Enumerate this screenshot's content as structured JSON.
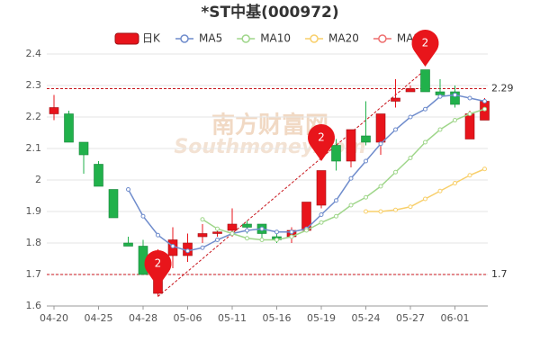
{
  "chart_data": {
    "type": "candlestick",
    "title": "*ST中基(000972)",
    "watermark": "南方财富网",
    "watermark_sub": "Southmoney.com",
    "categories": [
      "04-20",
      null,
      null,
      "04-25",
      null,
      null,
      "04-28",
      null,
      null,
      "05-06",
      null,
      null,
      "05-11",
      null,
      null,
      "05-16",
      null,
      null,
      "05-19",
      null,
      null,
      "05-24",
      null,
      null,
      "05-27",
      null,
      null,
      "06-01",
      null,
      null
    ],
    "ylim": [
      1.6,
      2.4
    ],
    "yticks": [
      1.6,
      1.7,
      1.8,
      1.9,
      2,
      2.1,
      2.2,
      2.3,
      2.4
    ],
    "grid": true,
    "series": [
      {
        "name": "日K",
        "up_color": "#e8141b",
        "down_color": "#21b14b",
        "open": [
          2.21,
          2.21,
          2.12,
          2.05,
          1.97,
          1.8,
          1.79,
          1.64,
          1.76,
          1.76,
          1.82,
          1.83,
          1.84,
          1.86,
          1.86,
          1.82,
          1.82,
          1.84,
          1.92,
          2.11,
          2.06,
          2.14,
          2.12,
          2.25,
          2.28,
          2.35,
          2.28,
          2.28,
          2.13,
          2.19
        ],
        "high": [
          2.27,
          2.22,
          2.12,
          2.06,
          1.97,
          1.82,
          1.81,
          1.78,
          1.85,
          1.83,
          1.86,
          1.85,
          1.91,
          1.87,
          1.86,
          1.83,
          1.85,
          1.93,
          2.03,
          2.13,
          2.16,
          2.25,
          2.21,
          2.32,
          2.3,
          2.35,
          2.32,
          2.3,
          2.22,
          2.26
        ],
        "low": [
          2.19,
          2.12,
          2.02,
          1.98,
          1.88,
          1.79,
          1.7,
          1.63,
          1.72,
          1.74,
          1.8,
          1.82,
          1.82,
          1.83,
          1.81,
          1.8,
          1.8,
          1.84,
          1.91,
          2.03,
          2.04,
          2.11,
          2.08,
          2.23,
          2.28,
          2.28,
          2.26,
          2.23,
          2.13,
          2.19
        ],
        "close": [
          2.23,
          2.12,
          2.08,
          1.98,
          1.88,
          1.79,
          1.7,
          1.77,
          1.81,
          1.8,
          1.83,
          1.835,
          1.86,
          1.85,
          1.83,
          1.81,
          1.84,
          1.93,
          2.03,
          2.06,
          2.16,
          2.12,
          2.21,
          2.26,
          2.29,
          2.28,
          2.27,
          2.24,
          2.21,
          2.25
        ]
      }
    ],
    "lines": [
      {
        "name": "MA5",
        "color": "#6f8ccc",
        "values": [
          null,
          null,
          null,
          null,
          null,
          1.97,
          1.885,
          1.825,
          1.79,
          1.775,
          1.785,
          1.81,
          1.83,
          1.84,
          1.845,
          1.835,
          1.835,
          1.845,
          1.89,
          1.935,
          2.005,
          2.06,
          2.115,
          2.16,
          2.2,
          2.225,
          2.265,
          2.27,
          2.26,
          2.25
        ]
      },
      {
        "name": "MA10",
        "color": "#9fd68a",
        "values": [
          null,
          null,
          null,
          null,
          null,
          null,
          null,
          null,
          null,
          null,
          1.875,
          1.845,
          1.83,
          1.815,
          1.81,
          1.81,
          1.82,
          1.84,
          1.865,
          1.885,
          1.92,
          1.945,
          1.98,
          2.025,
          2.07,
          2.12,
          2.16,
          2.19,
          2.21,
          2.225
        ]
      },
      {
        "name": "MA20",
        "color": "#f8cf6a",
        "values": [
          null,
          null,
          null,
          null,
          null,
          null,
          null,
          null,
          null,
          null,
          null,
          null,
          null,
          null,
          null,
          null,
          null,
          null,
          null,
          null,
          null,
          1.9,
          1.9,
          1.905,
          1.915,
          1.94,
          1.965,
          1.99,
          2.015,
          2.035
        ]
      },
      {
        "name": "MA30",
        "color": "#ee6f6f",
        "values": [
          null,
          null,
          null,
          null,
          null,
          null,
          null,
          null,
          null,
          null,
          null,
          null,
          null,
          null,
          null,
          null,
          null,
          null,
          null,
          null,
          null,
          null,
          null,
          null,
          null,
          null,
          null,
          null,
          null,
          null
        ]
      }
    ],
    "hlines": [
      2.29,
      1.7
    ],
    "trendline": {
      "x": [
        7,
        25
      ],
      "y": [
        1.63,
        2.35
      ]
    },
    "annotations": [
      {
        "label": "2",
        "x": 7,
        "y": 1.66
      },
      {
        "label": "2",
        "x": 18,
        "y": 2.06
      },
      {
        "label": "2",
        "x": 25,
        "y": 2.36
      }
    ]
  }
}
